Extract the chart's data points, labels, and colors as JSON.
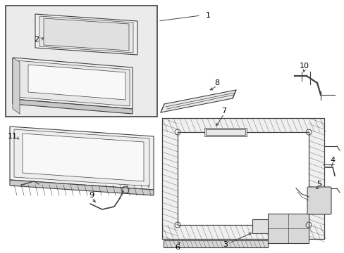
{
  "bg_color": "#ffffff",
  "line_color": "#404040",
  "label_color": "#000000",
  "fig_width": 4.89,
  "fig_height": 3.6,
  "dpi": 100,
  "inset_bg": "#e8e8e8",
  "part_bg": "#f5f5f5"
}
